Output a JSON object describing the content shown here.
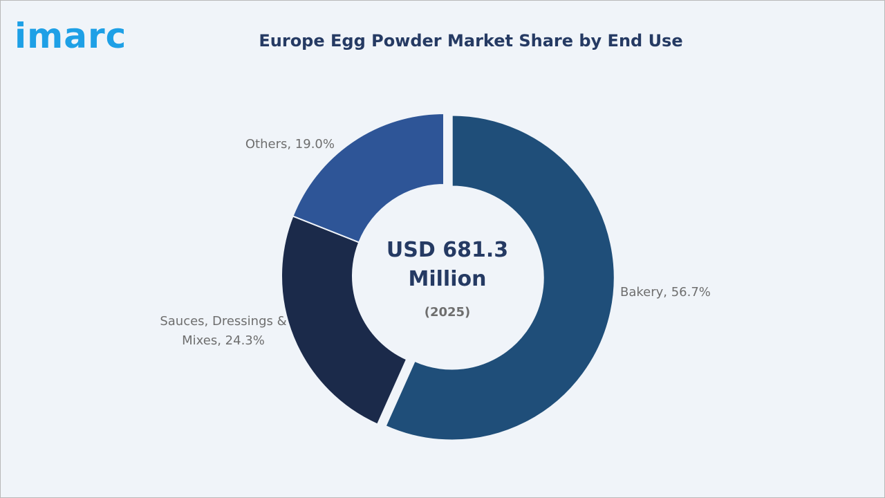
{
  "logo": "imarc",
  "chart_data": {
    "type": "donut",
    "title": "Europe Egg Powder Market Share by End Use",
    "values": [
      56.7,
      24.3,
      19.0
    ],
    "value_labels": [
      "Bakery, 56.7%",
      "Sauces, Dressings & Mixes, 24.3%",
      "Others, 19.0%"
    ],
    "colors": [
      "#1f4e79",
      "#1b2a4a",
      "#2e5597"
    ],
    "center_text": "USD 681.3 Million",
    "center_subtext": "(2025)"
  }
}
